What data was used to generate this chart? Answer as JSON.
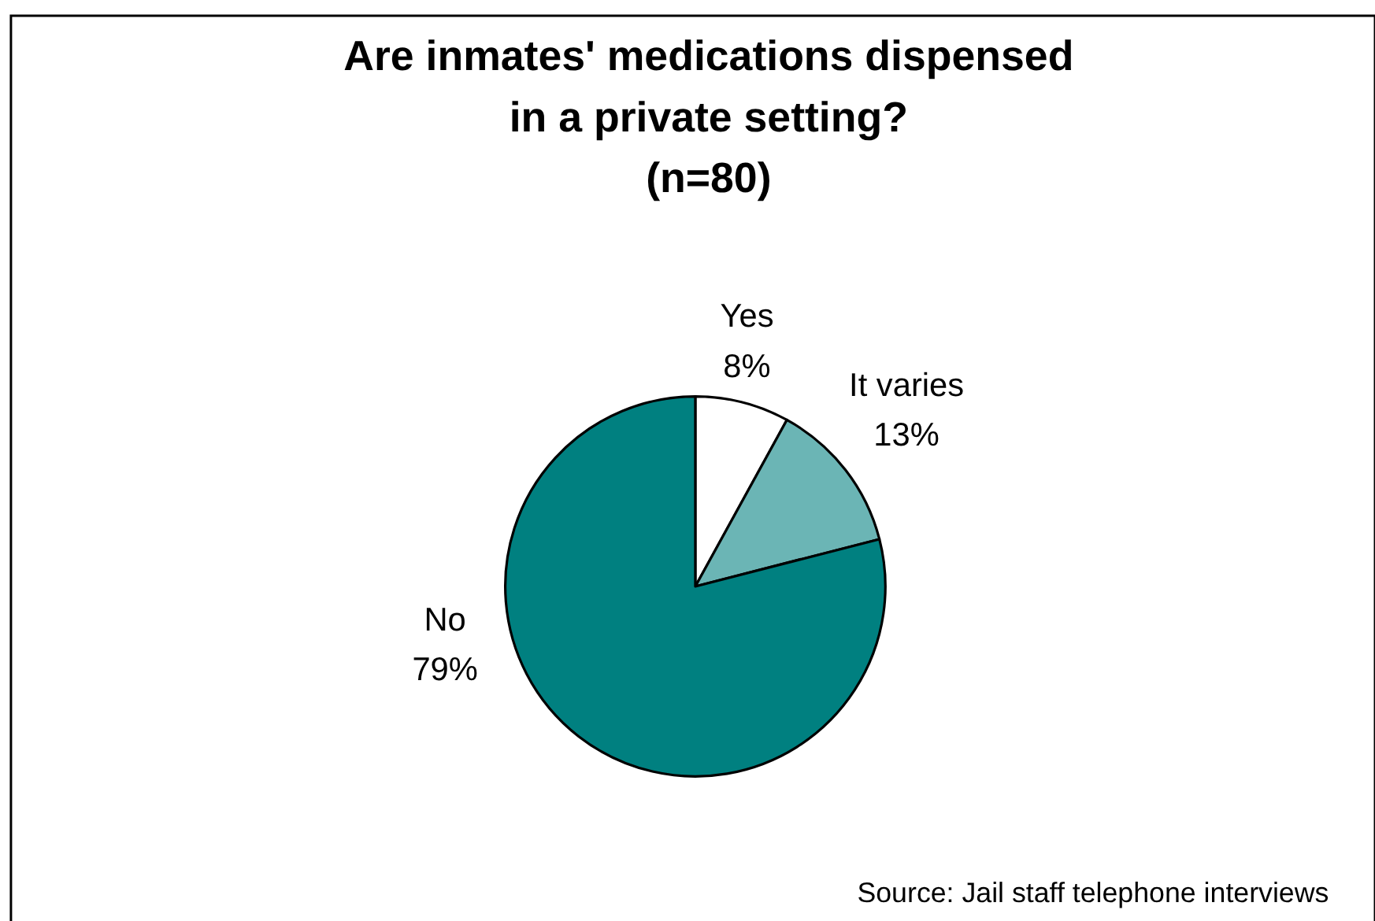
{
  "chart_data": {
    "type": "pie",
    "title": "Are inmates' medications dispensed\nin a private setting?\n(n=80)",
    "categories": [
      "Yes",
      "It varies",
      "No"
    ],
    "values": [
      8,
      13,
      79
    ],
    "colors": [
      "#ffffff",
      "#6bb5b5",
      "#008080"
    ],
    "value_labels": [
      "8%",
      "13%",
      "79%"
    ],
    "annotations": [
      "Source: Jail staff telephone interviews"
    ]
  }
}
